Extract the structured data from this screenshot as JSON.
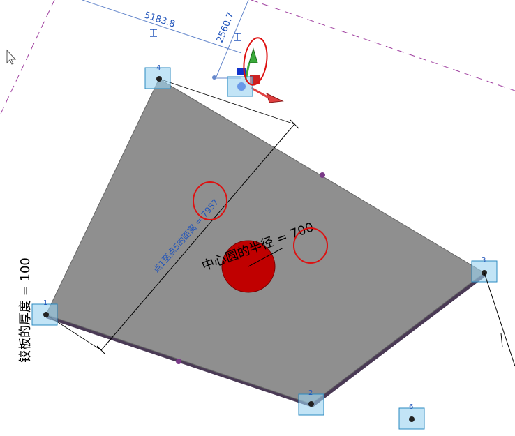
{
  "dimensions": {
    "temp_dim_1": "5183.8",
    "temp_dim_2": "2560.7",
    "distance_label": "点1至点5的距离 = 7957",
    "radius_label": "中心圆的半径 = 700",
    "thickness_label": "铰板的厚度 = 100"
  },
  "points": {
    "p1": "1",
    "p2": "2",
    "p3": "3",
    "p4": "4",
    "p6": "6"
  },
  "colors": {
    "plate": "#8f8f8f",
    "circle": "#c00000",
    "dimension_blue": "#2255bb",
    "highlight_red": "#dd1111",
    "dashed_purple": "#a040a0",
    "marker_cyan": "#4aa8e0"
  }
}
